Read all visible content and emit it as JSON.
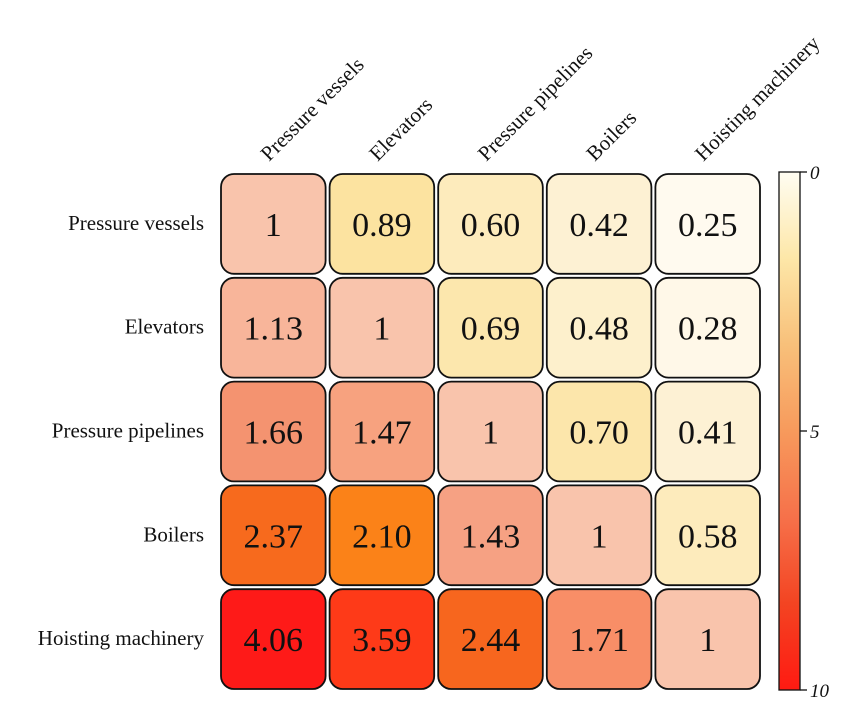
{
  "chart_data": {
    "type": "heatmap",
    "title": "",
    "rows": [
      "Pressure vessels",
      "Elevators",
      "Pressure pipelines",
      "Boilers",
      "Hoisting machinery"
    ],
    "columns": [
      "Pressure vessels",
      "Elevators",
      "Pressure pipelines",
      "Boilers",
      "Hoisting machinery"
    ],
    "values": [
      [
        1,
        0.89,
        0.6,
        0.42,
        0.25
      ],
      [
        1.13,
        1,
        0.69,
        0.48,
        0.28
      ],
      [
        1.66,
        1.47,
        1,
        0.7,
        0.41
      ],
      [
        2.37,
        2.1,
        1.43,
        1,
        0.58
      ],
      [
        4.06,
        3.59,
        2.44,
        1.71,
        1
      ]
    ],
    "value_labels": [
      [
        "1",
        "0.89",
        "0.60",
        "0.42",
        "0.25"
      ],
      [
        "1.13",
        "1",
        "0.69",
        "0.48",
        "0.28"
      ],
      [
        "1.66",
        "1.47",
        "1",
        "0.70",
        "0.41"
      ],
      [
        "2.37",
        "2.10",
        "1.43",
        "1",
        "0.58"
      ],
      [
        "4.06",
        "3.59",
        "2.44",
        "1.71",
        "1"
      ]
    ],
    "colorbar": {
      "ticks": [
        0,
        5,
        10
      ],
      "tick_labels": [
        "0",
        "5",
        "10"
      ],
      "range": [
        0,
        10
      ],
      "colors": [
        "#fffdf2",
        "#fde7a8",
        "#f8c07a",
        "#f79a5c",
        "#f6714a",
        "#f34422",
        "#ff1a12"
      ]
    },
    "cell_colors": [
      [
        "#f9c4ac",
        "#fce3a0",
        "#fdebbc",
        "#fdf1d3",
        "#fffaef"
      ],
      [
        "#f8b59a",
        "#f9c4ac",
        "#fce7ad",
        "#fdf0cc",
        "#fff8e8"
      ],
      [
        "#f49370",
        "#f7a27f",
        "#f9c4ac",
        "#fce6ab",
        "#fdf1d4"
      ],
      [
        "#f76a1d",
        "#fb8218",
        "#f6a183",
        "#f9c4ac",
        "#fdebbc"
      ],
      [
        "#fe1a18",
        "#fe3a18",
        "#f7661e",
        "#f88e67",
        "#f9c4ac"
      ]
    ]
  }
}
